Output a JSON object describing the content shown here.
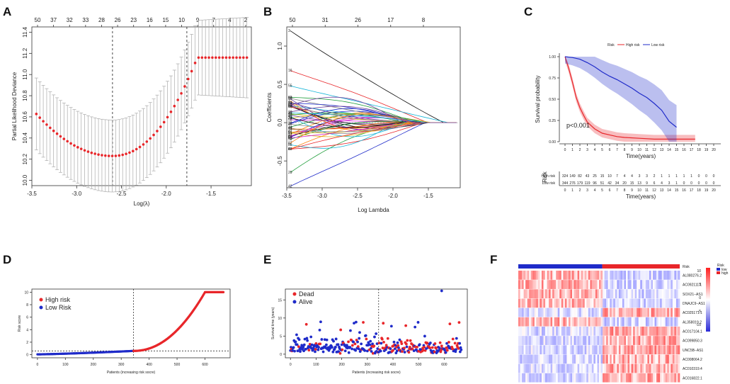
{
  "figure": {
    "panel_labels": [
      "A",
      "B",
      "C",
      "D",
      "E",
      "F"
    ]
  },
  "chart_data": [
    {
      "id": "A",
      "type": "scatter",
      "title": "",
      "xlabel": "Log(λ)",
      "ylabel": "Partial Likelihood Deviance",
      "xlim": [
        -3.5,
        -1.05
      ],
      "ylim": [
        9.95,
        11.45
      ],
      "xticks": [
        "-3.5",
        "-3.0",
        "-2.5",
        "-2.0",
        "-1.5"
      ],
      "yticks": [
        "10.0",
        "10.2",
        "10.4",
        "10.6",
        "10.8",
        "11.0",
        "11.2",
        "11.4"
      ],
      "top_ticks": [
        "50",
        "37",
        "32",
        "33",
        "28",
        "26",
        "23",
        "16",
        "15",
        "10",
        "9",
        "7",
        "4",
        "2"
      ],
      "vlines": [
        -2.6,
        -1.77
      ],
      "points_x_range": [
        -3.45,
        -1.1
      ],
      "point_count": 62,
      "description": "Cross-validation deviance with error bars; minimum ~10.23 near log(λ)=-2.6"
    },
    {
      "id": "B",
      "type": "line",
      "xlabel": "Log Lambda",
      "ylabel": "Coefficients",
      "xlim": [
        -3.5,
        -1.05
      ],
      "ylim": [
        -0.85,
        1.25
      ],
      "xticks": [
        "-3.5",
        "-3.0",
        "-2.5",
        "-2.0",
        "-1.5"
      ],
      "yticks": [
        "-0.5",
        "0.0",
        "0.5",
        "1.0"
      ],
      "top_ticks": [
        "50",
        "31",
        "26",
        "17",
        "8"
      ],
      "series_count": 50
    },
    {
      "id": "C",
      "type": "line",
      "xlabel": "Time(years)",
      "ylabel": "Survival probability",
      "legend_title": "Risk",
      "legend": [
        "High risk",
        "Low risk"
      ],
      "xlim": [
        0,
        20
      ],
      "ylim": [
        0,
        1
      ],
      "yticks": [
        "0.00",
        "0.25",
        "0.50",
        "0.75",
        "1.00"
      ],
      "xticks": [
        "0",
        "1",
        "2",
        "3",
        "4",
        "5",
        "6",
        "7",
        "8",
        "9",
        "10",
        "11",
        "12",
        "13",
        "14",
        "15",
        "16",
        "17",
        "18",
        "19",
        "20"
      ],
      "annotation": "p<0.001",
      "series": [
        {
          "name": "High risk",
          "color": "#e8262a",
          "x": [
            0,
            0.5,
            1,
            1.5,
            2,
            2.5,
            3,
            4,
            5,
            6,
            7,
            8,
            10,
            12,
            14,
            16,
            17.5
          ],
          "y": [
            1,
            0.86,
            0.7,
            0.52,
            0.4,
            0.31,
            0.23,
            0.15,
            0.1,
            0.08,
            0.06,
            0.05,
            0.04,
            0.03,
            0.03,
            0.03,
            0.03
          ]
        },
        {
          "name": "Low risk",
          "color": "#1f2bc9",
          "x": [
            0,
            1,
            2,
            3,
            4,
            5,
            6,
            7,
            8,
            9,
            10,
            11,
            12,
            13,
            14,
            15
          ],
          "y": [
            1,
            0.99,
            0.97,
            0.93,
            0.88,
            0.82,
            0.77,
            0.73,
            0.68,
            0.63,
            0.57,
            0.52,
            0.45,
            0.37,
            0.24,
            0.17
          ]
        }
      ],
      "risk_table": {
        "title": "Risk",
        "xlabel": "Time(years)",
        "rows": [
          {
            "name": "High risk",
            "color": "#e8262a",
            "values": [
              "324",
              "149",
              "82",
              "43",
              "25",
              "15",
              "10",
              "7",
              "4",
              "4",
              "3",
              "3",
              "2",
              "1",
              "1",
              "1",
              "1",
              "1",
              "0",
              "0",
              "0"
            ]
          },
          {
            "name": "Low risk",
            "color": "#1f2bc9",
            "values": [
              "344",
              "276",
              "179",
              "119",
              "96",
              "51",
              "42",
              "34",
              "20",
              "15",
              "13",
              "9",
              "6",
              "4",
              "3",
              "1",
              "0",
              "0",
              "0",
              "0",
              "0"
            ]
          }
        ]
      }
    },
    {
      "id": "D",
      "type": "scatter",
      "xlabel": "Patients (increasing risk socre)",
      "ylabel": "Risk score",
      "xlim": [
        -20,
        690
      ],
      "ylim": [
        -0.5,
        10.5
      ],
      "xticks": [
        "0",
        "100",
        "200",
        "300",
        "400",
        "500",
        "600"
      ],
      "yticks": [
        "0",
        "2",
        "4",
        "6",
        "8",
        "10"
      ],
      "legend": [
        "High risk",
        "Low Risk"
      ],
      "cutoff_x": 344,
      "cutoff_y": 0.6,
      "n_patients": 668
    },
    {
      "id": "E",
      "type": "scatter",
      "xlabel": "Patients (increasing risk socre)",
      "ylabel": "Survival time (years)",
      "xlim": [
        -20,
        690
      ],
      "ylim": [
        -1,
        18
      ],
      "xticks": [
        "0",
        "100",
        "200",
        "300",
        "400",
        "500",
        "600"
      ],
      "yticks": [
        "0",
        "5",
        "10",
        "15"
      ],
      "legend": [
        "Dead",
        "Alive"
      ],
      "cutoff_x": 344
    },
    {
      "id": "F",
      "type": "heatmap",
      "annotation_label": "Risk",
      "legend_title": "Risk",
      "legend_groups": [
        "low",
        "high"
      ],
      "colorbar_ticks": [
        "10",
        "5",
        "0",
        "-5",
        "-10"
      ],
      "genes": [
        "AL080276.2",
        "AC092111.1",
        "SOX21−AS1",
        "DNAJC9−AS1",
        "AC025171.1",
        "AL358019.2",
        "AC017104.1",
        "AC099850.3",
        "UNC5B−AS1",
        "AC008064.2",
        "AC010319.4",
        "AC016822.1"
      ]
    }
  ]
}
